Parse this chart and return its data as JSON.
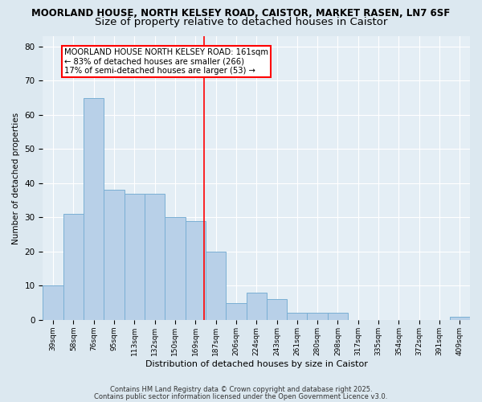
{
  "title1": "MOORLAND HOUSE, NORTH KELSEY ROAD, CAISTOR, MARKET RASEN, LN7 6SF",
  "title2": "Size of property relative to detached houses in Caistor",
  "xlabel": "Distribution of detached houses by size in Caistor",
  "ylabel": "Number of detached properties",
  "categories": [
    "39sqm",
    "58sqm",
    "76sqm",
    "95sqm",
    "113sqm",
    "132sqm",
    "150sqm",
    "169sqm",
    "187sqm",
    "206sqm",
    "224sqm",
    "243sqm",
    "261sqm",
    "280sqm",
    "298sqm",
    "317sqm",
    "335sqm",
    "354sqm",
    "372sqm",
    "391sqm",
    "409sqm"
  ],
  "values": [
    10,
    31,
    65,
    38,
    37,
    37,
    30,
    29,
    20,
    5,
    8,
    6,
    2,
    2,
    2,
    0,
    0,
    0,
    0,
    0,
    1
  ],
  "bar_color": "#b8d0e8",
  "bar_edgecolor": "#7aafd4",
  "bar_width": 1.0,
  "redline_x": 7.42,
  "annotation_text": "MOORLAND HOUSE NORTH KELSEY ROAD: 161sqm\n← 83% of detached houses are smaller (266)\n17% of semi-detached houses are larger (53) →",
  "annotation_box_color": "white",
  "annotation_box_edgecolor": "red",
  "ylim": [
    0,
    83
  ],
  "yticks": [
    0,
    10,
    20,
    30,
    40,
    50,
    60,
    70,
    80
  ],
  "footer1": "Contains HM Land Registry data © Crown copyright and database right 2025.",
  "footer2": "Contains public sector information licensed under the Open Government Licence v3.0.",
  "bg_color": "#dce8f0",
  "plot_bg_color": "#e4eef5",
  "grid_color": "white",
  "title1_fontsize": 8.5,
  "title2_fontsize": 9.5
}
